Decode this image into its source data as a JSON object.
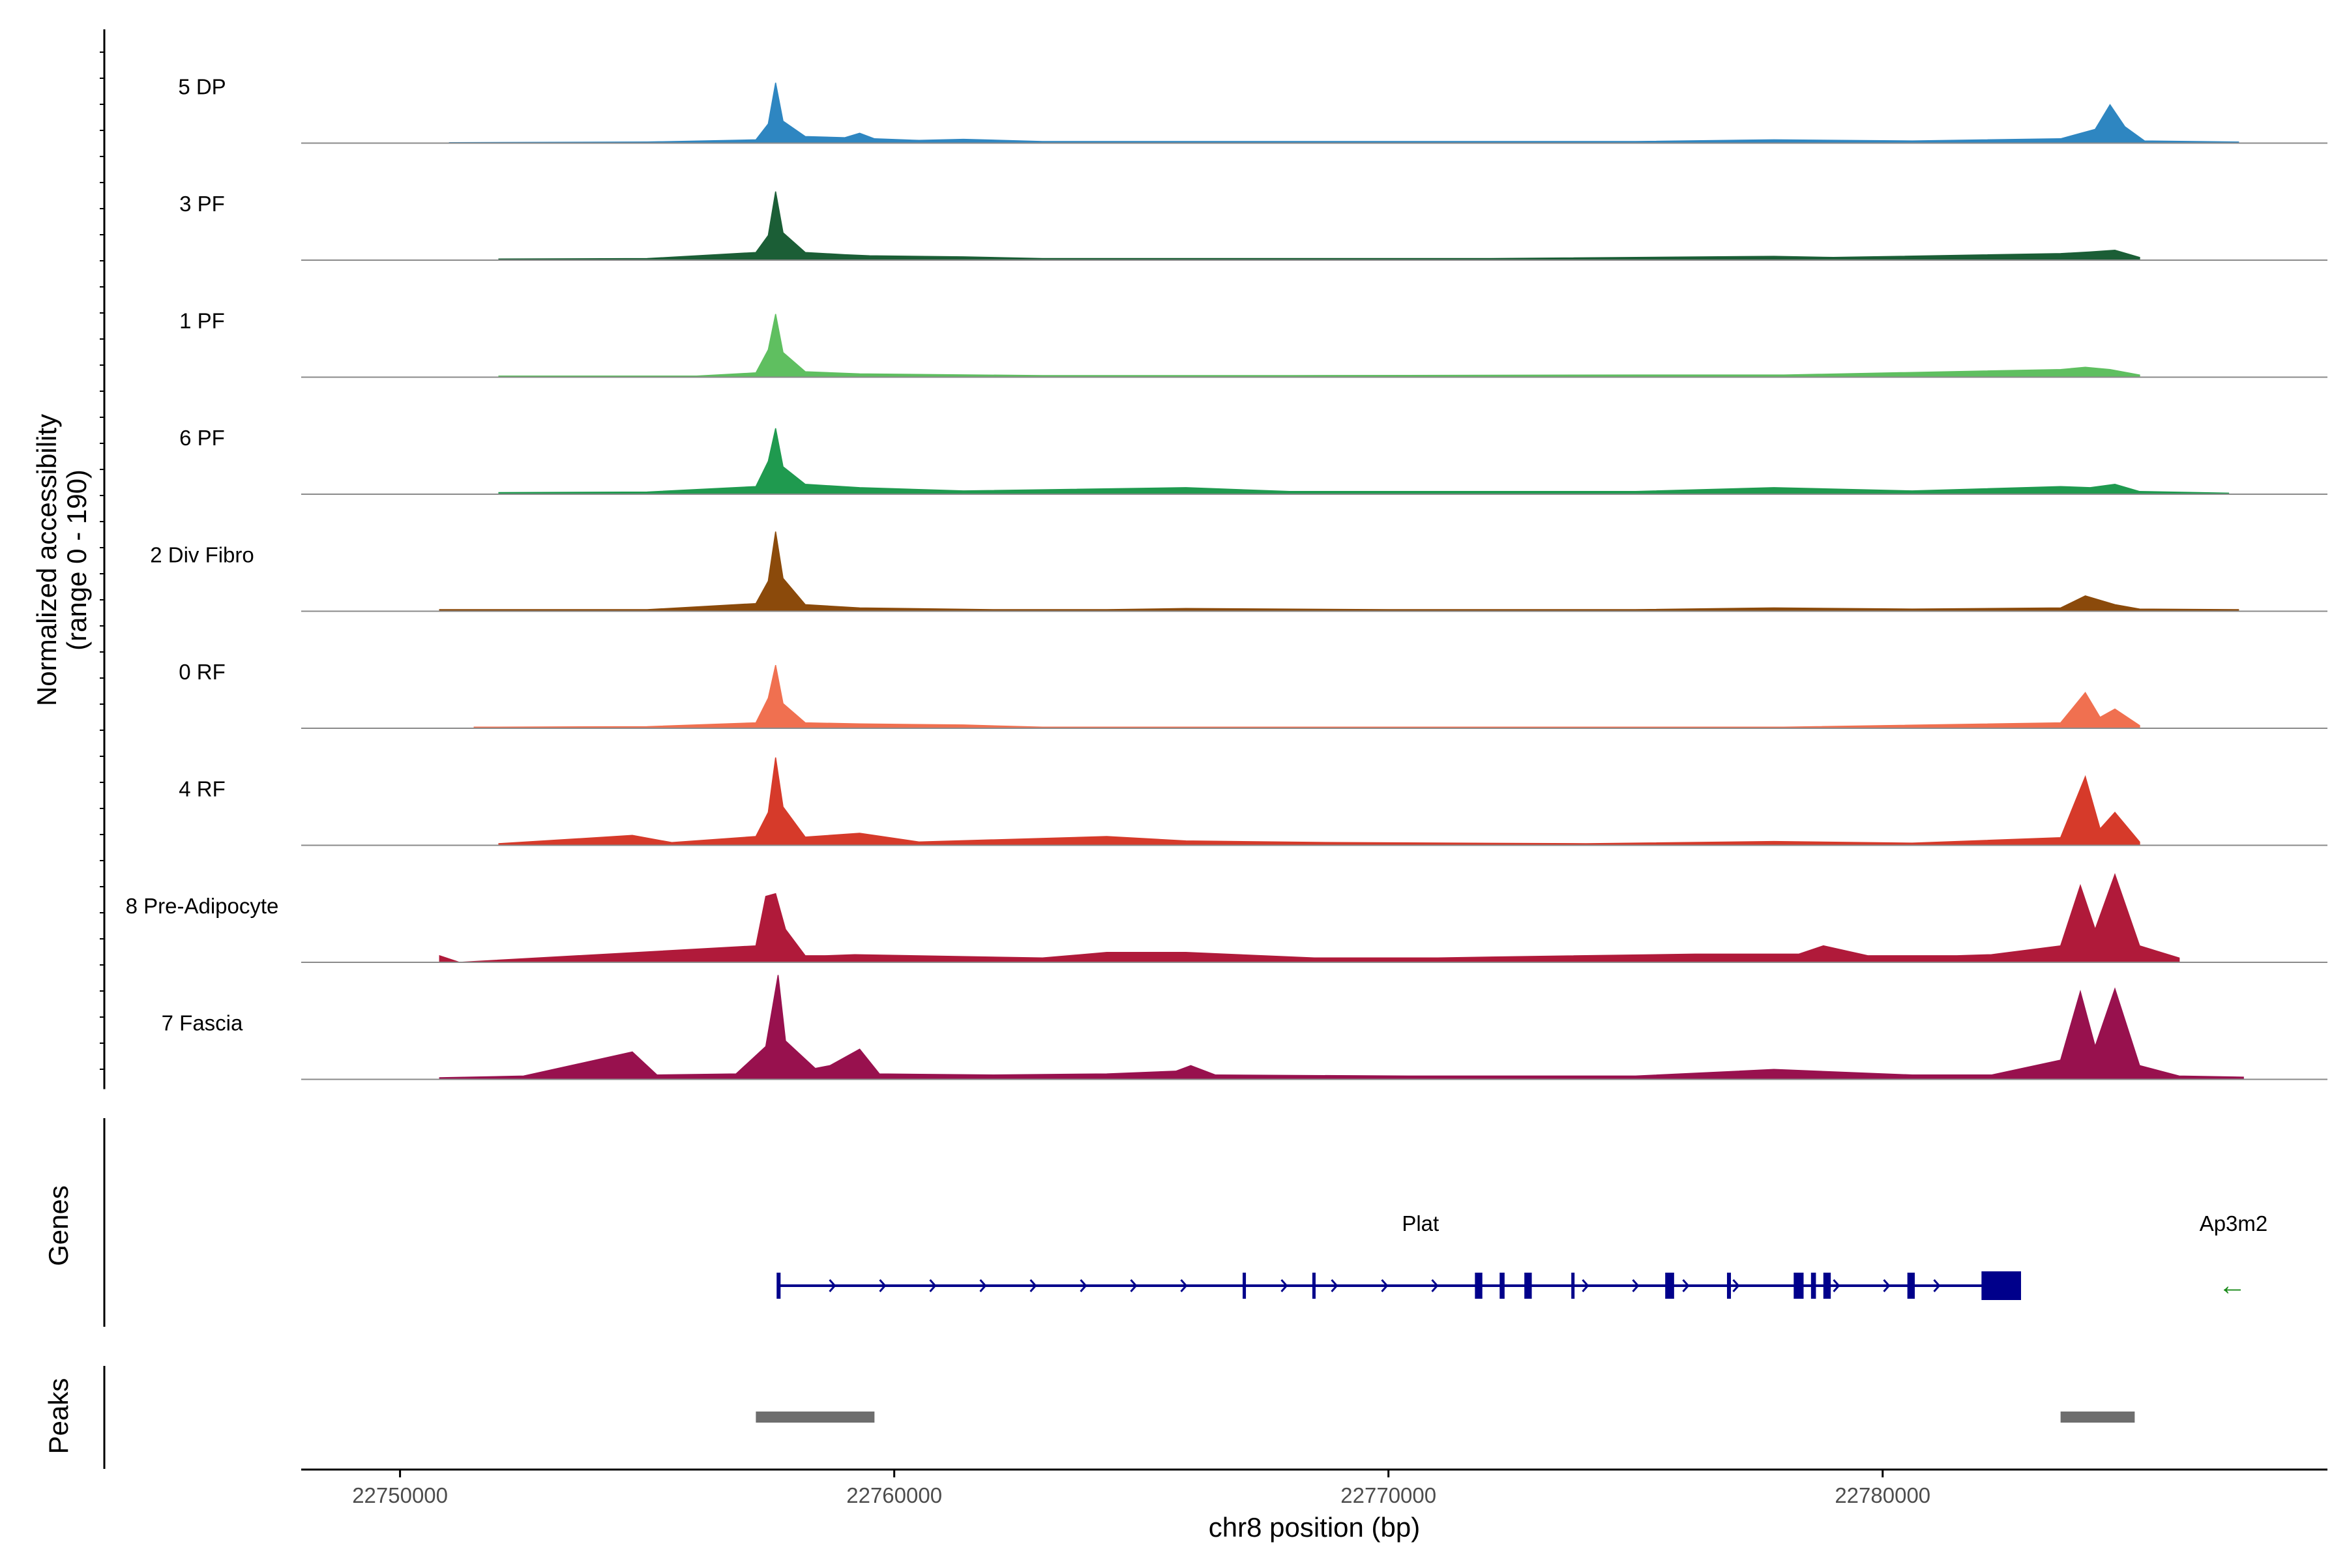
{
  "chart_data": {
    "type": "area",
    "title": "",
    "xlabel": "chr8 position (bp)",
    "ylabel_lines": [
      "Normalized accessibility",
      "(range 0 - 190)"
    ],
    "y_range": [
      0,
      190
    ],
    "xlim": [
      22748000,
      22789000
    ],
    "x_ticks": [
      22750000,
      22760000,
      22770000,
      22780000
    ],
    "x_tick_labels": [
      "22750000",
      "22760000",
      "22770000",
      "22780000"
    ],
    "grid": false,
    "legend": "none",
    "series": [
      {
        "name": "5 DP",
        "color": "#2e86c1",
        "points": [
          [
            22751000,
            1
          ],
          [
            22755000,
            2
          ],
          [
            22757200,
            6
          ],
          [
            22757450,
            35
          ],
          [
            22757600,
            110
          ],
          [
            22757750,
            40
          ],
          [
            22758200,
            12
          ],
          [
            22759000,
            10
          ],
          [
            22759300,
            18
          ],
          [
            22759600,
            8
          ],
          [
            22760500,
            5
          ],
          [
            22761400,
            7
          ],
          [
            22763000,
            3
          ],
          [
            22766000,
            3
          ],
          [
            22772000,
            3
          ],
          [
            22775000,
            3
          ],
          [
            22777800,
            6
          ],
          [
            22780600,
            4
          ],
          [
            22783600,
            8
          ],
          [
            22784300,
            25
          ],
          [
            22784600,
            70
          ],
          [
            22784900,
            30
          ],
          [
            22785300,
            4
          ],
          [
            22787200,
            2
          ]
        ]
      },
      {
        "name": "3 PF",
        "color": "#1b5e36",
        "points": [
          [
            22752000,
            2
          ],
          [
            22755000,
            3
          ],
          [
            22757200,
            14
          ],
          [
            22757450,
            45
          ],
          [
            22757600,
            125
          ],
          [
            22757750,
            50
          ],
          [
            22758200,
            14
          ],
          [
            22759000,
            10
          ],
          [
            22759500,
            8
          ],
          [
            22761400,
            6
          ],
          [
            22763000,
            3
          ],
          [
            22769000,
            3
          ],
          [
            22772000,
            3
          ],
          [
            22777800,
            7
          ],
          [
            22779000,
            5
          ],
          [
            22783600,
            12
          ],
          [
            22784200,
            15
          ],
          [
            22784700,
            18
          ],
          [
            22785200,
            5
          ]
        ]
      },
      {
        "name": "1 PF",
        "color": "#5fbf60",
        "points": [
          [
            22752000,
            2
          ],
          [
            22756000,
            2
          ],
          [
            22757200,
            8
          ],
          [
            22757450,
            50
          ],
          [
            22757600,
            115
          ],
          [
            22757750,
            45
          ],
          [
            22758200,
            10
          ],
          [
            22759300,
            6
          ],
          [
            22763000,
            3
          ],
          [
            22768000,
            3
          ],
          [
            22775000,
            4
          ],
          [
            22778000,
            4
          ],
          [
            22783600,
            14
          ],
          [
            22784100,
            18
          ],
          [
            22784600,
            14
          ],
          [
            22785200,
            4
          ]
        ]
      },
      {
        "name": "6 PF",
        "color": "#1f9a4f",
        "points": [
          [
            22752000,
            3
          ],
          [
            22755000,
            4
          ],
          [
            22757200,
            14
          ],
          [
            22757450,
            60
          ],
          [
            22757600,
            120
          ],
          [
            22757750,
            50
          ],
          [
            22758200,
            18
          ],
          [
            22759300,
            12
          ],
          [
            22761400,
            6
          ],
          [
            22765900,
            12
          ],
          [
            22768000,
            5
          ],
          [
            22771000,
            5
          ],
          [
            22775000,
            5
          ],
          [
            22777800,
            12
          ],
          [
            22780600,
            6
          ],
          [
            22783600,
            14
          ],
          [
            22784200,
            12
          ],
          [
            22784700,
            18
          ],
          [
            22785200,
            5
          ],
          [
            22787000,
            2
          ]
        ]
      },
      {
        "name": "2 Div Fibro",
        "color": "#8b4a0b",
        "points": [
          [
            22750800,
            3
          ],
          [
            22753000,
            3
          ],
          [
            22755000,
            3
          ],
          [
            22757200,
            14
          ],
          [
            22757450,
            55
          ],
          [
            22757600,
            145
          ],
          [
            22757750,
            60
          ],
          [
            22758200,
            12
          ],
          [
            22759300,
            6
          ],
          [
            22762000,
            3
          ],
          [
            22764300,
            3
          ],
          [
            22765900,
            5
          ],
          [
            22770000,
            3
          ],
          [
            22775000,
            3
          ],
          [
            22777800,
            6
          ],
          [
            22780600,
            4
          ],
          [
            22783600,
            6
          ],
          [
            22784100,
            28
          ],
          [
            22784700,
            12
          ],
          [
            22785200,
            4
          ],
          [
            22787200,
            3
          ]
        ]
      },
      {
        "name": "0 RF",
        "color": "#f07050",
        "points": [
          [
            22751500,
            2
          ],
          [
            22755000,
            3
          ],
          [
            22757200,
            10
          ],
          [
            22757450,
            55
          ],
          [
            22757600,
            115
          ],
          [
            22757750,
            45
          ],
          [
            22758200,
            10
          ],
          [
            22759300,
            8
          ],
          [
            22761400,
            6
          ],
          [
            22763000,
            2
          ],
          [
            22770000,
            2
          ],
          [
            22775000,
            2
          ],
          [
            22778000,
            2
          ],
          [
            22783600,
            10
          ],
          [
            22784100,
            65
          ],
          [
            22784400,
            20
          ],
          [
            22784700,
            35
          ],
          [
            22785200,
            5
          ]
        ]
      },
      {
        "name": "4 RF",
        "color": "#d63a2a",
        "points": [
          [
            22752000,
            3
          ],
          [
            22754700,
            18
          ],
          [
            22755500,
            5
          ],
          [
            22757200,
            16
          ],
          [
            22757450,
            60
          ],
          [
            22757600,
            160
          ],
          [
            22757750,
            70
          ],
          [
            22758200,
            15
          ],
          [
            22759300,
            22
          ],
          [
            22760500,
            6
          ],
          [
            22764300,
            16
          ],
          [
            22765900,
            8
          ],
          [
            22769000,
            5
          ],
          [
            22774000,
            3
          ],
          [
            22777800,
            7
          ],
          [
            22780600,
            4
          ],
          [
            22783600,
            14
          ],
          [
            22784100,
            125
          ],
          [
            22784400,
            30
          ],
          [
            22784700,
            60
          ],
          [
            22785200,
            6
          ]
        ]
      },
      {
        "name": "8 Pre-Adipocyte",
        "color": "#b01a3a",
        "points": [
          [
            22750800,
            12
          ],
          [
            22751200,
            0
          ],
          [
            22757200,
            30
          ],
          [
            22757400,
            120
          ],
          [
            22757600,
            125
          ],
          [
            22757800,
            60
          ],
          [
            22758200,
            12
          ],
          [
            22758600,
            12
          ],
          [
            22759200,
            14
          ],
          [
            22763000,
            8
          ],
          [
            22764300,
            18
          ],
          [
            22765900,
            18
          ],
          [
            22768500,
            8
          ],
          [
            22771000,
            8
          ],
          [
            22772300,
            10
          ],
          [
            22776200,
            15
          ],
          [
            22778300,
            15
          ],
          [
            22778800,
            30
          ],
          [
            22779700,
            12
          ],
          [
            22781500,
            12
          ],
          [
            22782200,
            14
          ],
          [
            22783600,
            30
          ],
          [
            22784000,
            140
          ],
          [
            22784300,
            60
          ],
          [
            22784700,
            160
          ],
          [
            22785200,
            30
          ],
          [
            22786000,
            8
          ]
        ]
      },
      {
        "name": "7 Fascia",
        "color": "#98114e",
        "points": [
          [
            22750800,
            3
          ],
          [
            22752500,
            6
          ],
          [
            22754700,
            50
          ],
          [
            22755200,
            8
          ],
          [
            22756800,
            10
          ],
          [
            22757400,
            60
          ],
          [
            22757650,
            190
          ],
          [
            22757800,
            70
          ],
          [
            22758400,
            20
          ],
          [
            22758700,
            25
          ],
          [
            22759300,
            55
          ],
          [
            22759700,
            10
          ],
          [
            22762000,
            8
          ],
          [
            22764300,
            10
          ],
          [
            22765700,
            15
          ],
          [
            22766000,
            25
          ],
          [
            22766500,
            8
          ],
          [
            22770500,
            6
          ],
          [
            22772000,
            6
          ],
          [
            22775000,
            6
          ],
          [
            22777800,
            18
          ],
          [
            22780600,
            8
          ],
          [
            22782200,
            8
          ],
          [
            22783600,
            35
          ],
          [
            22784000,
            160
          ],
          [
            22784300,
            60
          ],
          [
            22784700,
            165
          ],
          [
            22785200,
            25
          ],
          [
            22786000,
            6
          ],
          [
            22787300,
            4
          ]
        ]
      }
    ],
    "genes_track": {
      "title": "Genes",
      "genes": [
        {
          "name": "Plat",
          "strand": "+",
          "start": 22757650,
          "end": 22782800,
          "exons": [
            [
              22757620,
              22757700
            ],
            [
              22767050,
              22767110
            ],
            [
              22768460,
              22768500
            ],
            [
              22771750,
              22771900
            ],
            [
              22772250,
              22772350
            ],
            [
              22772750,
              22772900
            ],
            [
              22773700,
              22773760
            ],
            [
              22775600,
              22775780
            ],
            [
              22776850,
              22776930
            ],
            [
              22778200,
              22778400
            ],
            [
              22778550,
              22778650
            ],
            [
              22778800,
              22778950
            ],
            [
              22780500,
              22780650
            ],
            [
              22782000,
              22782800
            ]
          ]
        },
        {
          "name": "Ap3m2",
          "strand": "-",
          "start": 22786800,
          "end": 22787400,
          "arrow": "←",
          "color": "#1a8a1a"
        }
      ]
    },
    "peaks_track": {
      "title": "Peaks",
      "peaks": [
        [
          22757200,
          22759600
        ],
        [
          22783600,
          22785100
        ]
      ]
    }
  }
}
